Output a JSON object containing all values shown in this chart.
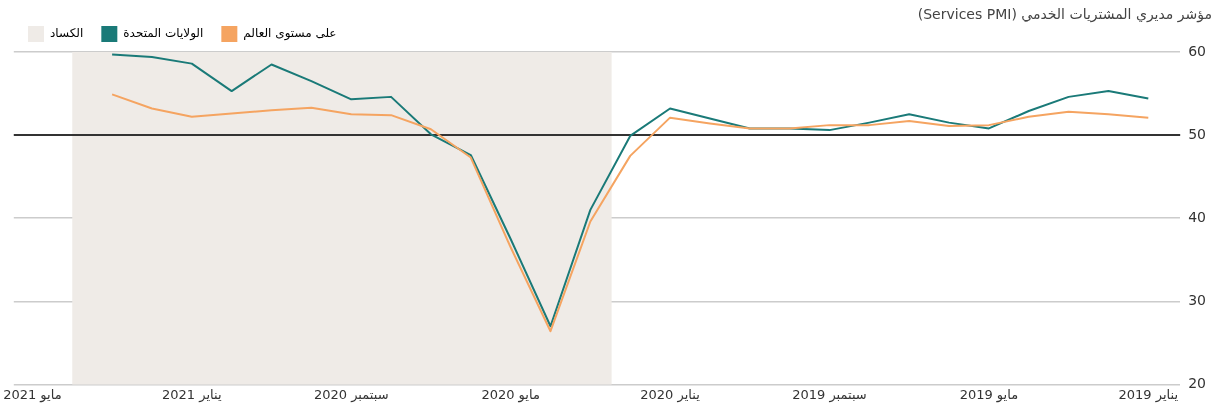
{
  "chart_data": {
    "type": "line",
    "title": "مؤشر مديري المشتريات الخدمي (Services PMI)",
    "x": [
      "2019-01",
      "2019-02",
      "2019-03",
      "2019-04",
      "2019-05",
      "2019-06",
      "2019-07",
      "2019-08",
      "2019-09",
      "2019-10",
      "2019-11",
      "2019-12",
      "2020-01",
      "2020-02",
      "2020-03",
      "2020-04",
      "2020-05",
      "2020-06",
      "2020-07",
      "2020-08",
      "2020-09",
      "2020-10",
      "2020-11",
      "2020-12",
      "2021-01",
      "2021-02",
      "2021-03"
    ],
    "series": [
      {
        "name": "على مستوى العالم",
        "color": "#f5a461",
        "values": [
          52.1,
          52.5,
          52.8,
          52.2,
          51.2,
          51.1,
          51.7,
          51.2,
          51.2,
          50.8,
          50.8,
          51.4,
          52.1,
          47.5,
          39.6,
          26.4,
          36.5,
          47.3,
          50.7,
          52.4,
          52.5,
          53.3,
          53.0,
          52.6,
          52.2,
          53.2,
          54.9
        ]
      },
      {
        "name": "الولايات المتحدة",
        "color": "#1a7a78",
        "values": [
          54.4,
          55.3,
          54.6,
          52.9,
          50.8,
          51.5,
          52.5,
          51.5,
          50.6,
          50.8,
          50.8,
          52.0,
          53.2,
          49.9,
          41.0,
          27.0,
          37.5,
          47.6,
          50.1,
          54.6,
          54.3,
          56.5,
          58.5,
          55.3,
          58.6,
          59.4,
          59.7
        ]
      }
    ],
    "bands": [
      {
        "axis": "x",
        "from": "2020-02-15",
        "to": "2021-04",
        "label": "الكساد",
        "color": "#efebe7"
      }
    ],
    "ref_lines": [
      {
        "axis": "y",
        "value": 50,
        "color": "#333333"
      }
    ],
    "xlim": [
      "2021-05-15",
      "2018-12-07"
    ],
    "xticks": [
      {
        "value": "2021-05",
        "label": "مايو 2021"
      },
      {
        "value": "2021-01",
        "label": "يناير 2021"
      },
      {
        "value": "2020-09",
        "label": "سبتمبر 2020"
      },
      {
        "value": "2020-05",
        "label": "مايو 2020"
      },
      {
        "value": "2020-01",
        "label": "يناير 2020"
      },
      {
        "value": "2019-09",
        "label": "سبتمبر 2019"
      },
      {
        "value": "2019-05",
        "label": "مايو 2019"
      },
      {
        "value": "2019-01",
        "label": "يناير 2019"
      }
    ],
    "ylim": [
      20,
      60
    ],
    "yticks": [
      20,
      30,
      40,
      50,
      60
    ],
    "grid": "y",
    "legend": "top left",
    "marker": "none",
    "line_style": "solid"
  }
}
